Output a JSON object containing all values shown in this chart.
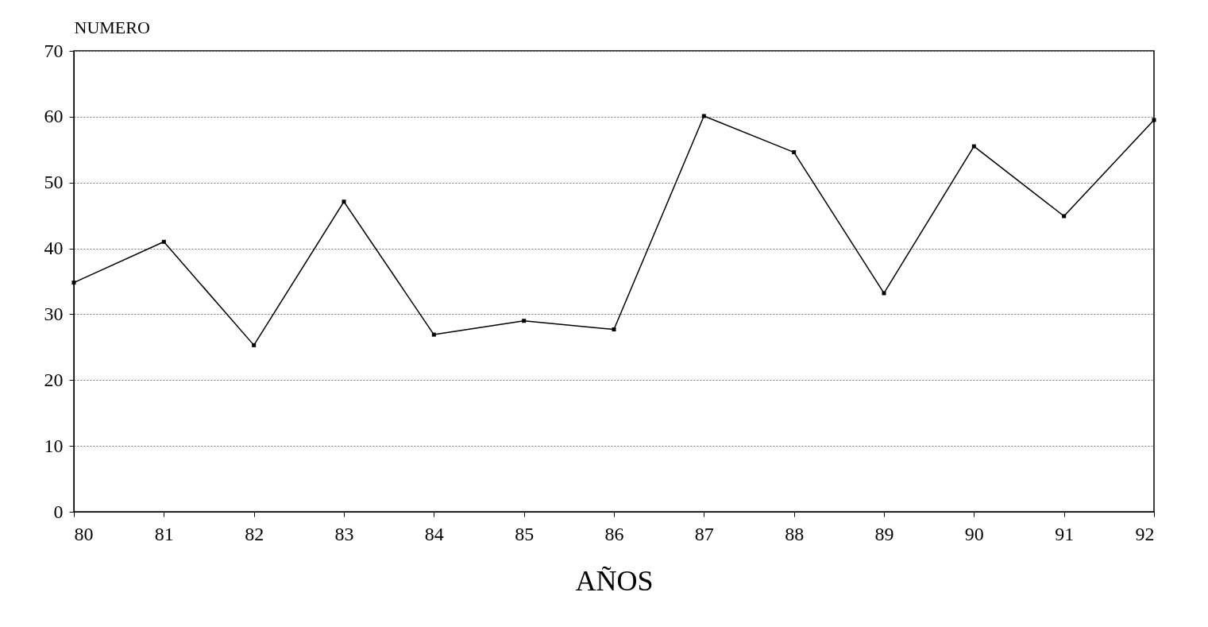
{
  "chart_data": {
    "type": "line",
    "xlabel": "AÑOS",
    "ylabel": "NUMERO",
    "x": [
      80,
      81,
      82,
      83,
      84,
      85,
      86,
      87,
      88,
      89,
      90,
      91,
      92
    ],
    "values": [
      34.8,
      41,
      25.3,
      47.1,
      26.9,
      29,
      27.7,
      60.1,
      54.6,
      33.2,
      55.5,
      44.9,
      59.5
    ],
    "color": "#000000",
    "xlim": [
      80,
      92
    ],
    "xticks": [
      80,
      81,
      82,
      83,
      84,
      85,
      86,
      87,
      88,
      89,
      90,
      91,
      92
    ],
    "ylim": [
      0,
      70
    ],
    "yticks": [
      0,
      10,
      20,
      30,
      40,
      50,
      60,
      70
    ],
    "grid": "y",
    "marker": "square",
    "line_style": "solid"
  }
}
